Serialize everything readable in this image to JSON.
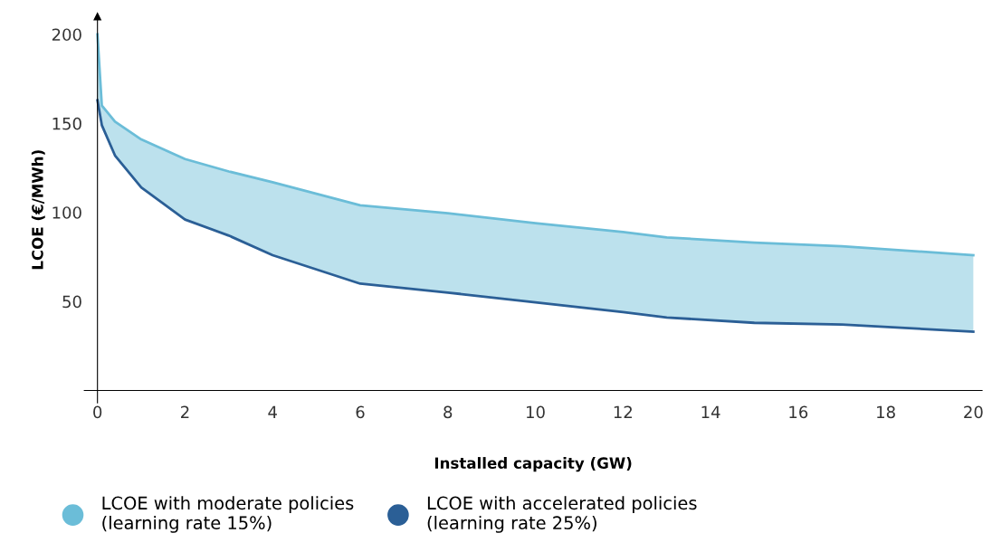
{
  "chart_data": {
    "type": "line",
    "xlabel": "Installed capacity (GW)",
    "ylabel": "LCOE (€/MWh)",
    "xlim": [
      -0.3,
      20.2
    ],
    "ylim": [
      -7,
      210
    ],
    "xticks": [
      0,
      2,
      4,
      6,
      8,
      10,
      12,
      14,
      16,
      18,
      20
    ],
    "yticks": [
      50,
      100,
      150,
      200
    ],
    "grid": false,
    "legend": "bottom",
    "marker": "none",
    "line_style": "solid",
    "series": [
      {
        "name": "LCOE with moderate policies\n(learning rate 15%)",
        "color": "#6bbdd8",
        "x": [
          0,
          0.1,
          0.4,
          1,
          2,
          3,
          4,
          6,
          8,
          10,
          12,
          13,
          15,
          17,
          20
        ],
        "values": [
          200,
          160,
          151,
          141,
          130,
          123,
          117,
          104,
          99.5,
          94,
          89,
          86,
          83,
          81,
          76
        ],
        "lower": [
          163,
          149,
          132,
          114,
          96,
          87,
          76,
          60,
          55,
          49.5,
          44,
          41,
          38,
          37,
          33
        ],
        "upper": [
          200,
          160,
          151,
          141,
          130,
          123,
          117,
          104,
          99.5,
          94,
          89,
          86,
          83,
          81,
          76
        ]
      },
      {
        "name": "LCOE with accelerated policies\n(learning rate 25%)",
        "color": "#2b5f96",
        "x": [
          0,
          0.1,
          0.4,
          1,
          2,
          3,
          4,
          6,
          8,
          10,
          12,
          13,
          15,
          17,
          20
        ],
        "values": [
          163,
          149,
          132,
          114,
          96,
          87,
          76,
          60,
          55,
          49.5,
          44,
          41,
          38,
          37,
          33
        ]
      }
    ]
  }
}
